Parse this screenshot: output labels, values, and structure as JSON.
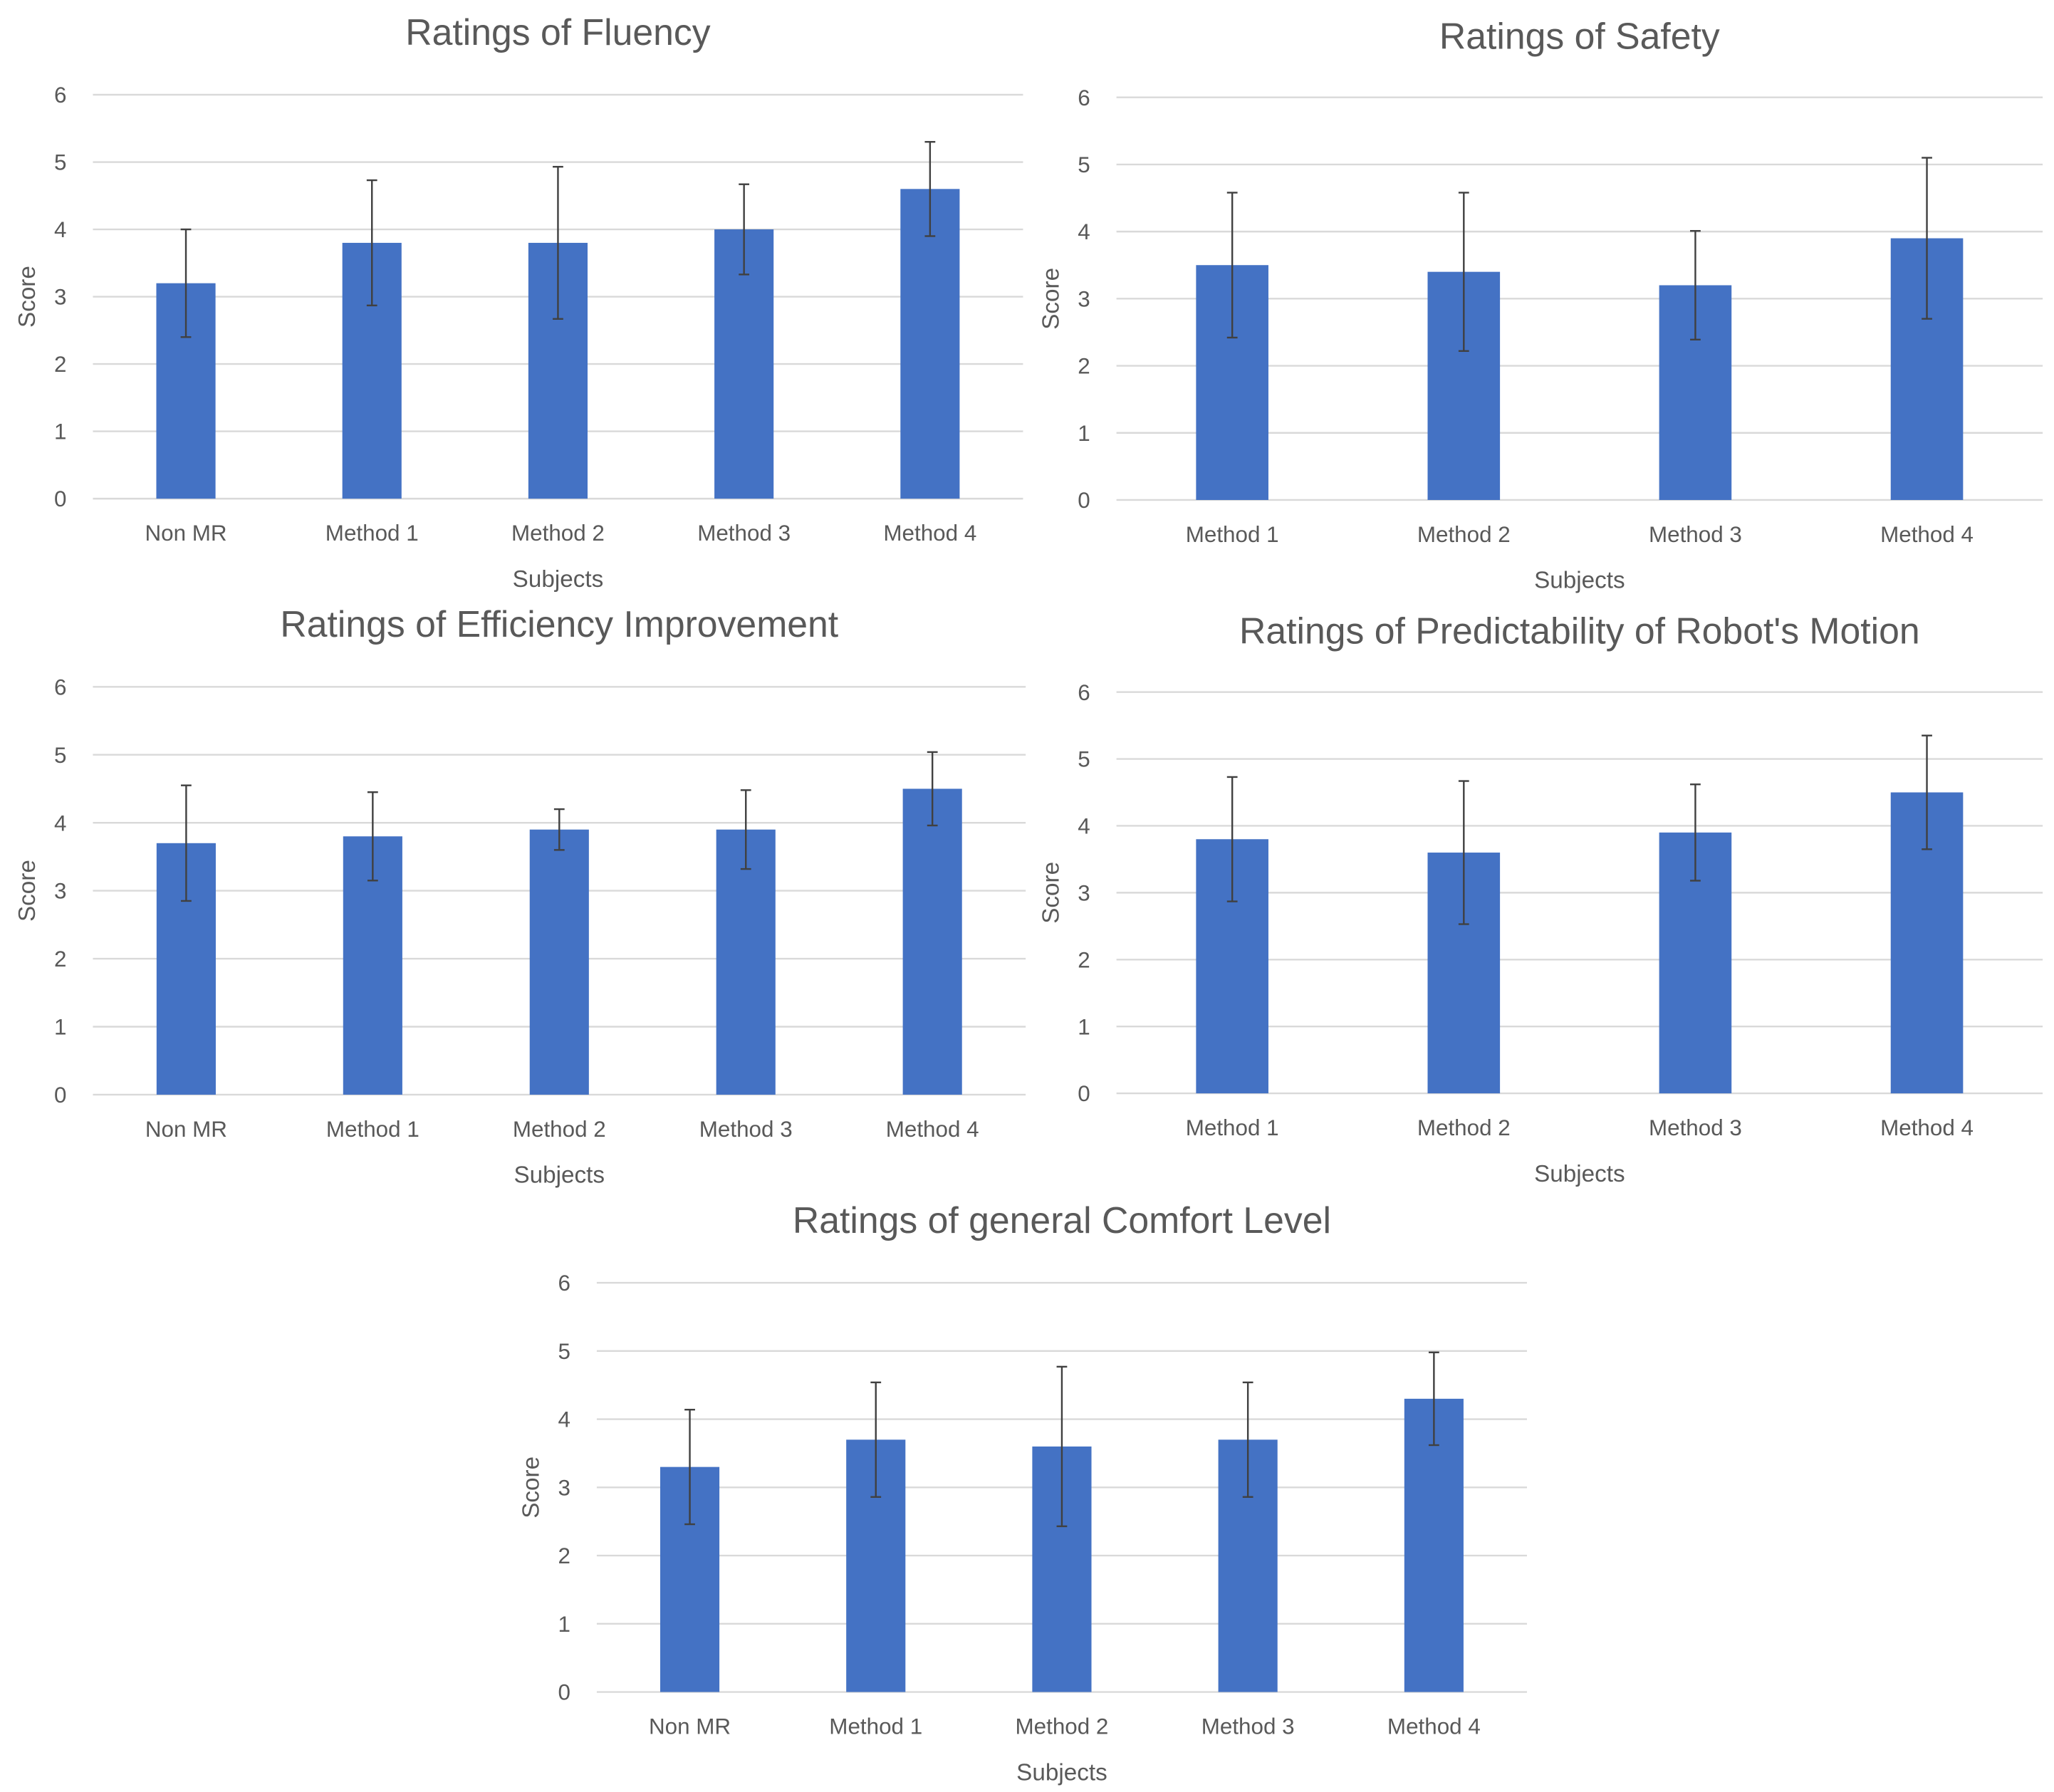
{
  "chart_data": [
    {
      "type": "bar",
      "title": "Ratings of Fluency",
      "xlabel": "Subjects",
      "ylabel": "Score",
      "ylim": [
        0,
        6
      ],
      "yticks": [
        0,
        1,
        2,
        3,
        4,
        5,
        6
      ],
      "grid": true,
      "categories": [
        "Non MR",
        "Method 1",
        "Method 2",
        "Method 3",
        "Method 4"
      ],
      "values": [
        3.2,
        3.8,
        3.8,
        4.0,
        4.6
      ],
      "error": [
        0.8,
        0.93,
        1.13,
        0.67,
        0.7
      ],
      "color": "#4472C4"
    },
    {
      "type": "bar",
      "title": "Ratings of Safety",
      "xlabel": "Subjects",
      "ylabel": "Score",
      "ylim": [
        0,
        6
      ],
      "yticks": [
        0,
        1,
        2,
        3,
        4,
        5,
        6
      ],
      "grid": true,
      "categories": [
        "Method 1",
        "Method 2",
        "Method 3",
        "Method 4"
      ],
      "values": [
        3.5,
        3.4,
        3.2,
        3.9
      ],
      "error": [
        1.08,
        1.18,
        0.81,
        1.2
      ],
      "color": "#4472C4"
    },
    {
      "type": "bar",
      "title": "Ratings of Efficiency Improvement",
      "xlabel": "Subjects",
      "ylabel": "Score",
      "ylim": [
        0,
        6
      ],
      "yticks": [
        0,
        1,
        2,
        3,
        4,
        5,
        6
      ],
      "grid": true,
      "categories": [
        "Non MR",
        "Method 1",
        "Method 2",
        "Method 3",
        "Method 4"
      ],
      "values": [
        3.7,
        3.8,
        3.9,
        3.9,
        4.5
      ],
      "error": [
        0.85,
        0.65,
        0.3,
        0.58,
        0.54
      ],
      "color": "#4472C4"
    },
    {
      "type": "bar",
      "title": "Ratings of Predictability of Robot's Motion",
      "xlabel": "Subjects",
      "ylabel": "Score",
      "ylim": [
        0,
        6
      ],
      "yticks": [
        0,
        1,
        2,
        3,
        4,
        5,
        6
      ],
      "grid": true,
      "categories": [
        "Method 1",
        "Method 2",
        "Method 3",
        "Method 4"
      ],
      "values": [
        3.8,
        3.6,
        3.9,
        4.5
      ],
      "error": [
        0.93,
        1.07,
        0.72,
        0.85
      ],
      "color": "#4472C4"
    },
    {
      "type": "bar",
      "title": "Ratings of general Comfort Level",
      "xlabel": "Subjects",
      "ylabel": "Score",
      "ylim": [
        0,
        6
      ],
      "yticks": [
        0,
        1,
        2,
        3,
        4,
        5,
        6
      ],
      "grid": true,
      "categories": [
        "Non MR",
        "Method 1",
        "Method 2",
        "Method 3",
        "Method 4"
      ],
      "values": [
        3.3,
        3.7,
        3.6,
        3.7,
        4.3
      ],
      "error": [
        0.84,
        0.84,
        1.17,
        0.84,
        0.68
      ],
      "color": "#4472C4"
    }
  ]
}
